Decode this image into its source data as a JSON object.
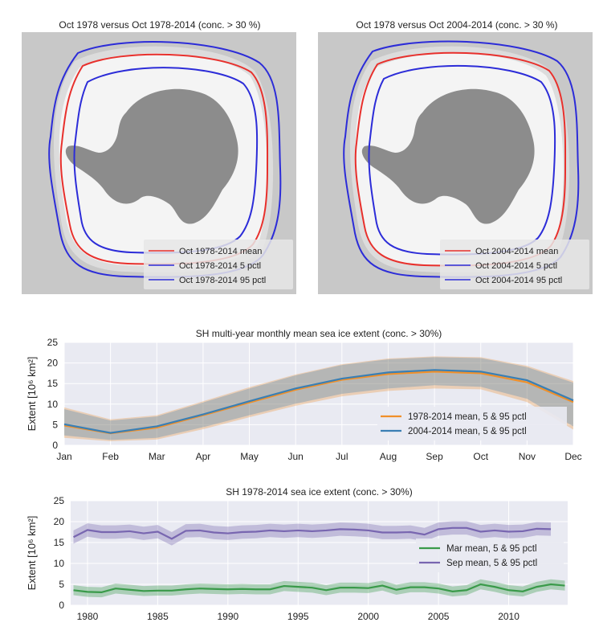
{
  "maps": [
    {
      "title": "Oct 1978 versus Oct 1978-2014 (conc. > 30 %)",
      "legend": [
        "Oct 1978-2014 mean",
        "Oct 1978-2014 5 pctl",
        "Oct 1978-2014 95 pctl"
      ]
    },
    {
      "title": "Oct 1978 versus Oct 2004-2014 (conc. > 30 %)",
      "legend": [
        "Oct 2004-2014 mean",
        "Oct 2004-2014 5 pctl",
        "Oct 2004-2014 95 pctl"
      ]
    }
  ],
  "colors": {
    "map_ocean": "#c8c8c8",
    "map_ice": "#f4f4f4",
    "map_land": "#8c8c8c",
    "mean_line": "#e8302c",
    "pctl_line": "#2c2cd8",
    "orange": "#f0902a",
    "blue": "#3a7fb4",
    "green": "#3a9a4a",
    "purple": "#7866b0",
    "plot_bg": "#e9eaf2"
  },
  "chart_data": [
    {
      "type": "line",
      "title": "SH multi-year monthly mean sea ice extent (conc. > 30%)",
      "xlabel": "",
      "ylabel": "Extent [10⁶ km²]",
      "categories": [
        "Jan",
        "Feb",
        "Mar",
        "Apr",
        "May",
        "Jun",
        "Jul",
        "Aug",
        "Sep",
        "Oct",
        "Nov",
        "Dec"
      ],
      "ylim": [
        0,
        25
      ],
      "yticks": [
        0,
        5,
        10,
        15,
        20,
        25
      ],
      "grid": true,
      "legend_position": "lower-right",
      "series": [
        {
          "name": "1978-2014 mean, 5 & 95 pctl",
          "color": "#f0902a",
          "values": [
            4.8,
            2.9,
            4.3,
            7.3,
            10.4,
            13.5,
            15.9,
            17.3,
            17.9,
            17.5,
            15.3,
            10.5
          ],
          "lower": [
            1.8,
            1.0,
            1.4,
            3.9,
            6.8,
            9.6,
            11.9,
            13.2,
            13.8,
            13.6,
            10.5,
            3.8
          ],
          "upper": [
            9.2,
            6.3,
            7.3,
            10.7,
            14.1,
            17.2,
            19.7,
            21.1,
            21.6,
            21.4,
            19.3,
            15.6
          ]
        },
        {
          "name": "2004-2014 mean, 5 & 95 pctl",
          "color": "#3a7fb4",
          "values": [
            5.1,
            3.0,
            4.6,
            7.5,
            10.7,
            13.8,
            16.2,
            17.7,
            18.3,
            17.9,
            15.8,
            10.9
          ],
          "lower": [
            2.4,
            1.3,
            1.8,
            4.4,
            7.3,
            10.1,
            12.5,
            13.8,
            14.6,
            14.2,
            11.3,
            4.6
          ],
          "upper": [
            8.8,
            6.0,
            7.0,
            10.4,
            13.8,
            17.0,
            19.5,
            20.9,
            21.4,
            21.2,
            19.0,
            15.2
          ]
        }
      ]
    },
    {
      "type": "line",
      "title": "SH 1978-2014 sea ice extent (conc. > 30%)",
      "xlabel": "",
      "ylabel": "Extent [10⁶ km²]",
      "xlim": [
        1978.8,
        2014.2
      ],
      "xticks": [
        1980,
        1985,
        1990,
        1995,
        2000,
        2005,
        2010
      ],
      "ylim": [
        0,
        25
      ],
      "yticks": [
        0,
        5,
        10,
        15,
        20,
        25
      ],
      "grid": true,
      "legend_position": "center-right",
      "x": [
        1979,
        1980,
        1981,
        1982,
        1983,
        1984,
        1985,
        1986,
        1987,
        1988,
        1989,
        1990,
        1991,
        1992,
        1993,
        1994,
        1995,
        1996,
        1997,
        1998,
        1999,
        2000,
        2001,
        2002,
        2003,
        2004,
        2005,
        2006,
        2007,
        2008,
        2009,
        2010,
        2011,
        2012,
        2013,
        2014
      ],
      "series": [
        {
          "name": "Mar mean, 5 & 95 pctl",
          "color": "#3a9a4a",
          "values": [
            3.6,
            3.2,
            3.1,
            4.0,
            3.7,
            3.4,
            3.5,
            3.5,
            3.8,
            4.0,
            3.9,
            3.8,
            3.9,
            3.8,
            3.8,
            4.6,
            4.4,
            4.2,
            3.6,
            4.2,
            4.2,
            4.1,
            4.7,
            3.7,
            4.3,
            4.3,
            4.0,
            3.3,
            3.6,
            5.0,
            4.4,
            3.6,
            3.3,
            4.4,
            5.0,
            4.7
          ],
          "spread": 1.2
        },
        {
          "name": "Sep mean, 5 & 95 pctl",
          "color": "#7866b0",
          "values": [
            16.3,
            18.0,
            17.5,
            17.5,
            17.7,
            17.2,
            17.6,
            15.9,
            17.8,
            17.9,
            17.4,
            17.2,
            17.5,
            17.6,
            17.9,
            17.7,
            17.9,
            17.7,
            17.9,
            18.2,
            18.1,
            17.9,
            17.4,
            17.4,
            17.5,
            16.9,
            18.2,
            18.5,
            18.5,
            17.6,
            17.9,
            17.6,
            17.7,
            18.3,
            18.2,
            null
          ],
          "spread": 1.6
        }
      ]
    }
  ]
}
